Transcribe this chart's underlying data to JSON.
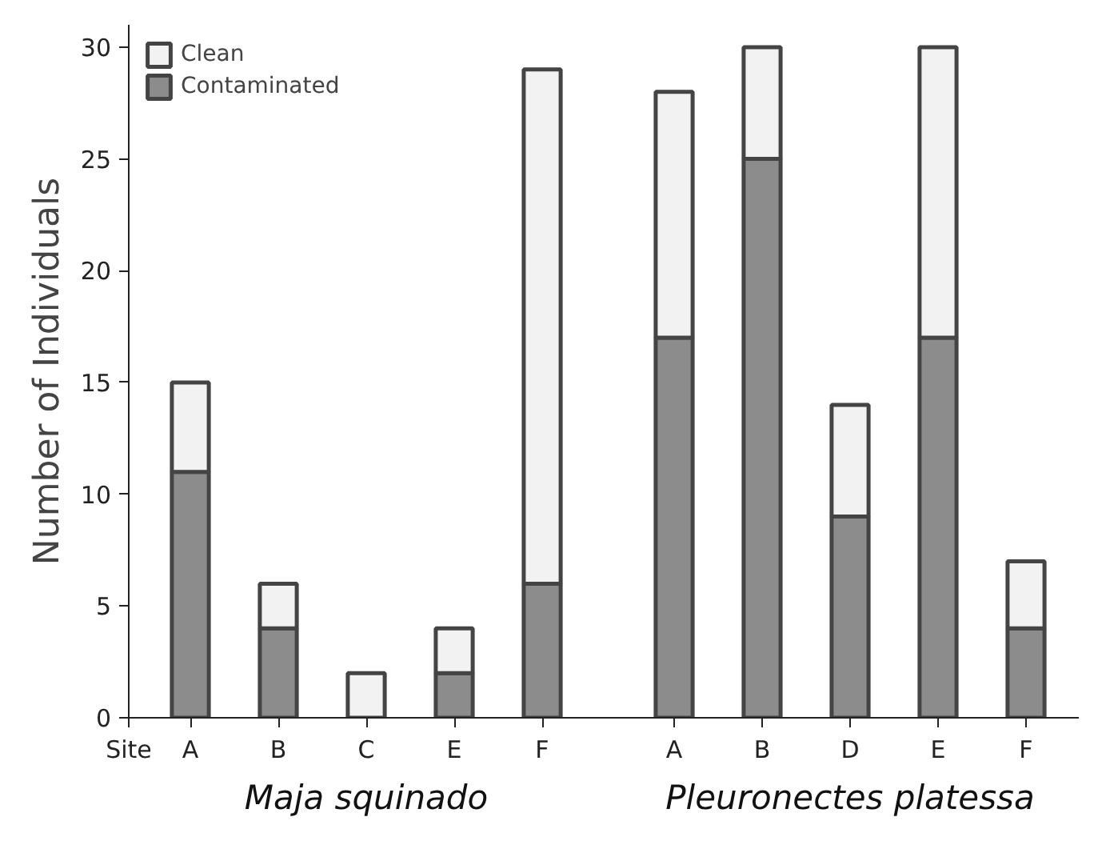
{
  "chart_data": {
    "type": "bar",
    "stacked": true,
    "ylabel": "Number of Individuals",
    "xlabel": "Site",
    "categories": [
      "A",
      "B",
      "C",
      "E",
      "F",
      "A",
      "B",
      "D",
      "E",
      "F"
    ],
    "series": [
      {
        "name": "Contaminated",
        "color": "#8c8c8c",
        "values": [
          11,
          4,
          0,
          2,
          6,
          17,
          25,
          9,
          17,
          4
        ]
      },
      {
        "name": "Clean",
        "color": "#f2f2f2",
        "values": [
          4,
          2,
          2,
          2,
          23,
          11,
          5,
          5,
          13,
          3
        ]
      }
    ],
    "annotations": [
      "Maja squinado",
      "Pleuronectes platessa"
    ],
    "ylim": [
      0,
      31
    ],
    "yticks": [
      0,
      5,
      10,
      15,
      20,
      25,
      30
    ],
    "grid": false,
    "legend": "top left"
  }
}
